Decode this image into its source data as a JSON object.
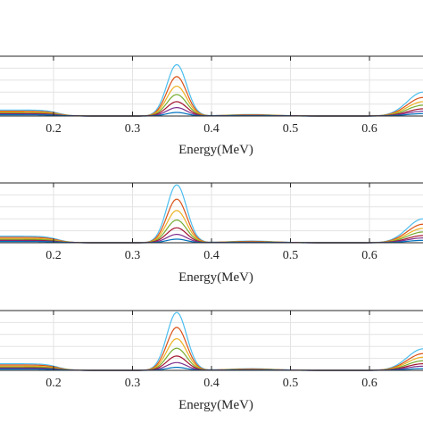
{
  "chart_data": [
    {
      "type": "line",
      "xlabel": "Energy(MeV)",
      "xlim": [
        0.13,
        0.67
      ],
      "ylim": [
        0,
        1.0
      ],
      "grid": true,
      "x_ticks": [
        0.2,
        0.3,
        0.4,
        0.5,
        0.6
      ],
      "x_tick_labels": [
        "0.2",
        "0.3",
        "0.4",
        "0.5",
        "0.6"
      ],
      "series": [
        {
          "color": "#4dbeee",
          "peak1": 0.86,
          "peak2": 0.4,
          "tail": 0.1
        },
        {
          "color": "#d95319",
          "peak1": 0.66,
          "peak2": 0.31,
          "tail": 0.08
        },
        {
          "color": "#edb120",
          "peak1": 0.5,
          "peak2": 0.24,
          "tail": 0.065
        },
        {
          "color": "#77ac30",
          "peak1": 0.36,
          "peak2": 0.18,
          "tail": 0.05
        },
        {
          "color": "#a2142f",
          "peak1": 0.24,
          "peak2": 0.12,
          "tail": 0.04
        },
        {
          "color": "#7e2f8e",
          "peak1": 0.14,
          "peak2": 0.08,
          "tail": 0.03
        },
        {
          "color": "#0072bd",
          "peak1": 0.06,
          "peak2": 0.04,
          "tail": 0.02
        }
      ]
    },
    {
      "type": "line",
      "xlabel": "Energy(MeV)",
      "xlim": [
        0.13,
        0.67
      ],
      "ylim": [
        0,
        1.0
      ],
      "grid": true,
      "x_ticks": [
        0.2,
        0.3,
        0.4,
        0.5,
        0.6
      ],
      "x_tick_labels": [
        "0.2",
        "0.3",
        "0.4",
        "0.5",
        "0.6"
      ],
      "series": [
        {
          "color": "#4dbeee",
          "peak1": 0.97,
          "peak2": 0.4,
          "tail": 0.11
        },
        {
          "color": "#d95319",
          "peak1": 0.73,
          "peak2": 0.31,
          "tail": 0.09
        },
        {
          "color": "#edb120",
          "peak1": 0.54,
          "peak2": 0.24,
          "tail": 0.07
        },
        {
          "color": "#77ac30",
          "peak1": 0.38,
          "peak2": 0.18,
          "tail": 0.055
        },
        {
          "color": "#a2142f",
          "peak1": 0.25,
          "peak2": 0.12,
          "tail": 0.04
        },
        {
          "color": "#7e2f8e",
          "peak1": 0.14,
          "peak2": 0.08,
          "tail": 0.03
        },
        {
          "color": "#0072bd",
          "peak1": 0.06,
          "peak2": 0.04,
          "tail": 0.02
        }
      ]
    },
    {
      "type": "line",
      "xlabel": "Energy(MeV)",
      "xlim": [
        0.13,
        0.67
      ],
      "ylim": [
        0,
        1.0
      ],
      "grid": true,
      "x_ticks": [
        0.2,
        0.3,
        0.4,
        0.5,
        0.6
      ],
      "x_tick_labels": [
        "0.2",
        "0.3",
        "0.4",
        "0.5",
        "0.6"
      ],
      "series": [
        {
          "color": "#4dbeee",
          "peak1": 0.97,
          "peak2": 0.36,
          "tail": 0.11
        },
        {
          "color": "#d95319",
          "peak1": 0.72,
          "peak2": 0.28,
          "tail": 0.09
        },
        {
          "color": "#edb120",
          "peak1": 0.53,
          "peak2": 0.22,
          "tail": 0.07
        },
        {
          "color": "#77ac30",
          "peak1": 0.37,
          "peak2": 0.16,
          "tail": 0.055
        },
        {
          "color": "#a2142f",
          "peak1": 0.24,
          "peak2": 0.11,
          "tail": 0.04
        },
        {
          "color": "#7e2f8e",
          "peak1": 0.13,
          "peak2": 0.07,
          "tail": 0.03
        },
        {
          "color": "#0072bd",
          "peak1": 0.05,
          "peak2": 0.03,
          "tail": 0.02
        }
      ]
    }
  ]
}
